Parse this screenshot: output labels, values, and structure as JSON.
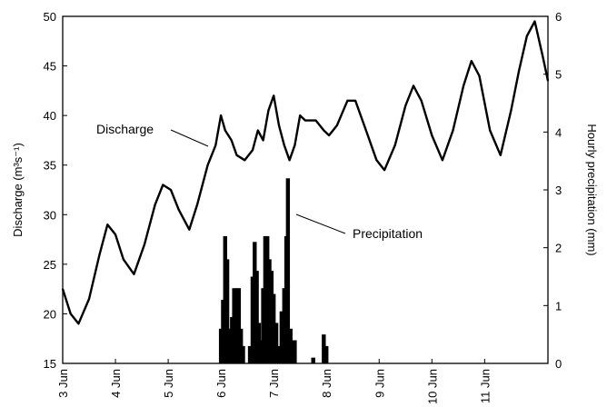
{
  "chart_data": {
    "type": "line",
    "title": "",
    "x_axis": {
      "ticks": [
        "3 Jun",
        "4 Jun",
        "5 Jun",
        "6 Jun",
        "7 Jun",
        "8 Jun",
        "9 Jun",
        "10 Jun",
        "11 Jun"
      ],
      "range": [
        3,
        12.2
      ]
    },
    "y_left": {
      "label": "Discharge (m³s⁻¹)",
      "range": [
        15,
        50
      ],
      "ticks": [
        15,
        20,
        25,
        30,
        35,
        40,
        45,
        50
      ]
    },
    "y_right": {
      "label": "Hourly precipitation (mm)",
      "range": [
        0,
        6
      ],
      "ticks": [
        0,
        1,
        2,
        3,
        4,
        5,
        6
      ]
    },
    "grid": false,
    "legend": "none",
    "annotations": [
      {
        "text": "Discharge",
        "target": "discharge"
      },
      {
        "text": "Precipitation",
        "target": "precipitation"
      }
    ],
    "series": [
      {
        "name": "Discharge",
        "axis": "left",
        "style": "line",
        "points": [
          [
            3.0,
            22.5
          ],
          [
            3.15,
            20.0
          ],
          [
            3.3,
            19.0
          ],
          [
            3.5,
            21.5
          ],
          [
            3.7,
            26.0
          ],
          [
            3.85,
            29.0
          ],
          [
            4.0,
            28.0
          ],
          [
            4.15,
            25.5
          ],
          [
            4.35,
            24.0
          ],
          [
            4.55,
            27.0
          ],
          [
            4.75,
            31.0
          ],
          [
            4.9,
            33.0
          ],
          [
            5.05,
            32.5
          ],
          [
            5.2,
            30.5
          ],
          [
            5.4,
            28.5
          ],
          [
            5.55,
            31.0
          ],
          [
            5.75,
            35.0
          ],
          [
            5.9,
            37.0
          ],
          [
            6.0,
            40.0
          ],
          [
            6.08,
            38.5
          ],
          [
            6.2,
            37.5
          ],
          [
            6.3,
            36.0
          ],
          [
            6.45,
            35.5
          ],
          [
            6.6,
            36.5
          ],
          [
            6.7,
            38.5
          ],
          [
            6.8,
            37.5
          ],
          [
            6.9,
            40.5
          ],
          [
            7.0,
            42.0
          ],
          [
            7.1,
            39.0
          ],
          [
            7.2,
            37.0
          ],
          [
            7.3,
            35.5
          ],
          [
            7.4,
            37.0
          ],
          [
            7.5,
            40.0
          ],
          [
            7.6,
            39.5
          ],
          [
            7.8,
            39.5
          ],
          [
            7.95,
            38.5
          ],
          [
            8.05,
            38.0
          ],
          [
            8.2,
            39.0
          ],
          [
            8.4,
            41.5
          ],
          [
            8.55,
            41.5
          ],
          [
            8.75,
            38.5
          ],
          [
            8.95,
            35.5
          ],
          [
            9.1,
            34.5
          ],
          [
            9.3,
            37.0
          ],
          [
            9.5,
            41.0
          ],
          [
            9.65,
            43.0
          ],
          [
            9.8,
            41.5
          ],
          [
            10.0,
            38.0
          ],
          [
            10.2,
            35.5
          ],
          [
            10.4,
            38.5
          ],
          [
            10.6,
            43.0
          ],
          [
            10.75,
            45.5
          ],
          [
            10.9,
            44.0
          ],
          [
            11.1,
            38.5
          ],
          [
            11.3,
            36.0
          ],
          [
            11.5,
            40.5
          ],
          [
            11.65,
            44.5
          ],
          [
            11.8,
            48.0
          ],
          [
            11.95,
            49.5
          ],
          [
            12.1,
            46.0
          ],
          [
            12.2,
            43.5
          ]
        ]
      },
      {
        "name": "Precipitation",
        "axis": "right",
        "style": "bar",
        "points": [
          [
            6.0,
            0.6
          ],
          [
            6.04,
            1.1
          ],
          [
            6.08,
            2.2
          ],
          [
            6.12,
            1.8
          ],
          [
            6.17,
            0.6
          ],
          [
            6.21,
            0.8
          ],
          [
            6.25,
            1.3
          ],
          [
            6.3,
            1.3
          ],
          [
            6.34,
            1.3
          ],
          [
            6.38,
            0.6
          ],
          [
            6.42,
            0.3
          ],
          [
            6.55,
            0.3
          ],
          [
            6.6,
            1.5
          ],
          [
            6.64,
            2.1
          ],
          [
            6.68,
            1.6
          ],
          [
            6.72,
            0.7
          ],
          [
            6.76,
            0.4
          ],
          [
            6.8,
            1.3
          ],
          [
            6.84,
            2.2
          ],
          [
            6.88,
            2.2
          ],
          [
            6.92,
            1.8
          ],
          [
            6.96,
            1.6
          ],
          [
            7.0,
            1.2
          ],
          [
            7.05,
            0.7
          ],
          [
            7.1,
            0.3
          ],
          [
            7.15,
            0.9
          ],
          [
            7.2,
            1.3
          ],
          [
            7.24,
            2.2
          ],
          [
            7.27,
            3.2
          ],
          [
            7.32,
            0.6
          ],
          [
            7.36,
            0.4
          ],
          [
            7.4,
            0.4
          ],
          [
            7.75,
            0.1
          ],
          [
            7.95,
            0.5
          ],
          [
            8.0,
            0.3
          ]
        ]
      }
    ]
  }
}
